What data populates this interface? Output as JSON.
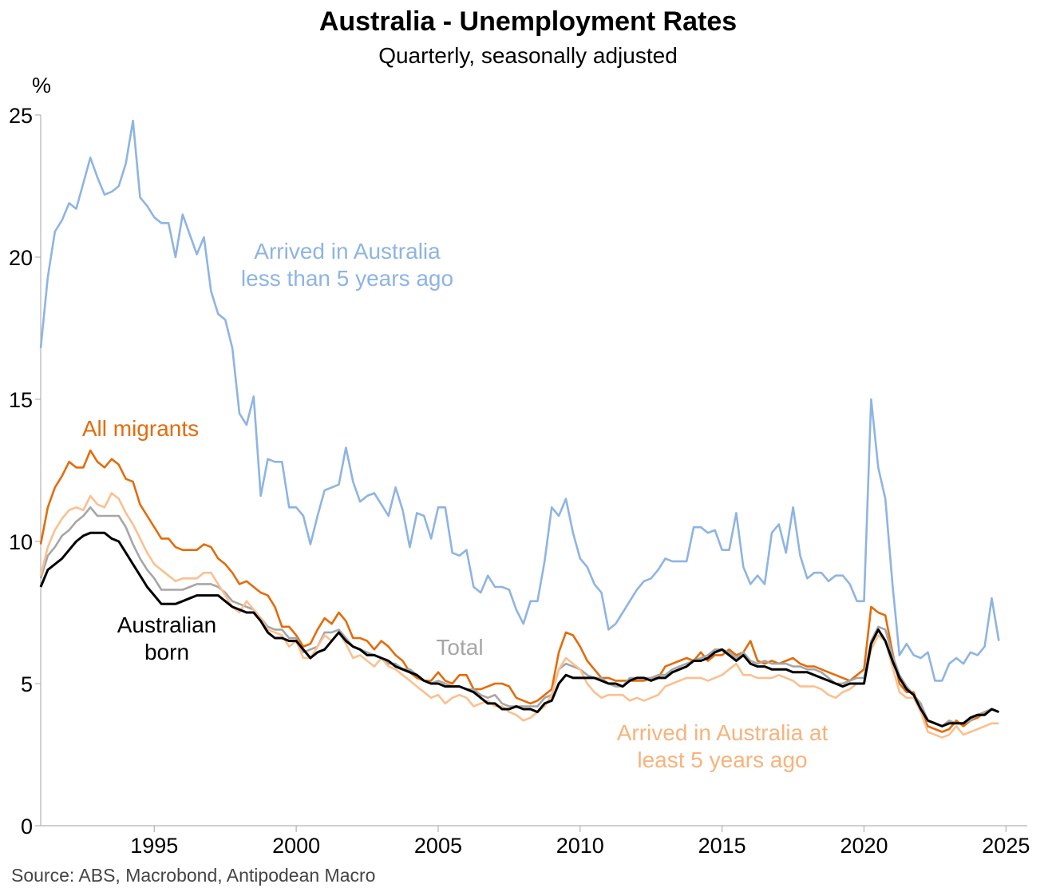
{
  "chart_data": {
    "type": "line",
    "title": "Australia - Unemployment Rates",
    "subtitle": "Quarterly, seasonally adjusted",
    "ylabel": "%",
    "source": "Source: ABS, Macrobond, Antipodean Macro",
    "xlim": [
      1991.0,
      2025.75
    ],
    "ylim": [
      0,
      25
    ],
    "x_ticks": [
      "1995",
      "2000",
      "2005",
      "2010",
      "2015",
      "2020",
      "2025"
    ],
    "y_ticks": [
      "0",
      "5",
      "10",
      "15",
      "20",
      "25"
    ],
    "x_start": 1991.0,
    "x_step": 0.25,
    "series": [
      {
        "name": "Arrived in Australia less than 5 years ago",
        "label_lines": [
          "Arrived in Australia",
          "less than 5 years ago"
        ],
        "color": "#8eb4e3",
        "values": [
          16.8,
          19.3,
          20.9,
          21.3,
          21.9,
          21.7,
          22.6,
          23.5,
          22.8,
          22.2,
          22.3,
          22.5,
          23.3,
          24.8,
          22.1,
          21.8,
          21.4,
          21.2,
          21.2,
          20.0,
          21.5,
          20.8,
          20.1,
          20.7,
          18.8,
          18.0,
          17.8,
          16.8,
          14.5,
          14.1,
          15.1,
          11.6,
          12.9,
          12.8,
          12.8,
          11.2,
          11.2,
          10.9,
          9.9,
          10.9,
          11.8,
          11.9,
          12.0,
          13.3,
          12.1,
          11.4,
          11.6,
          11.7,
          11.3,
          10.9,
          11.9,
          11.1,
          9.8,
          11.0,
          10.9,
          10.1,
          11.2,
          11.2,
          9.6,
          9.5,
          9.7,
          8.4,
          8.2,
          8.8,
          8.4,
          8.4,
          8.3,
          7.6,
          7.1,
          7.9,
          7.9,
          9.3,
          11.2,
          10.9,
          11.5,
          10.3,
          9.4,
          9.1,
          8.5,
          8.2,
          6.9,
          7.1,
          7.5,
          7.9,
          8.3,
          8.6,
          8.7,
          9.0,
          9.4,
          9.3,
          9.3,
          9.3,
          10.5,
          10.5,
          10.3,
          10.4,
          9.7,
          9.7,
          11.0,
          9.1,
          8.5,
          8.8,
          8.5,
          10.3,
          10.6,
          9.6,
          11.2,
          9.5,
          8.7,
          8.9,
          8.9,
          8.6,
          8.8,
          8.8,
          8.5,
          7.9,
          7.9,
          15.0,
          12.6,
          11.5,
          8.5,
          6.0,
          6.4,
          6.0,
          5.9,
          6.1,
          5.1,
          5.1,
          5.7,
          5.9,
          5.7,
          6.1,
          6.0,
          6.3,
          8.0,
          6.5
        ],
        "label_color": "#8eb4e3"
      },
      {
        "name": "All migrants",
        "label_lines": [
          "All migrants"
        ],
        "color": "#e36c0a",
        "values": [
          9.9,
          11.2,
          11.9,
          12.3,
          12.8,
          12.6,
          12.6,
          13.2,
          12.8,
          12.6,
          12.9,
          12.7,
          12.2,
          12.1,
          11.3,
          10.9,
          10.5,
          10.1,
          10.1,
          9.8,
          9.7,
          9.7,
          9.7,
          9.9,
          9.8,
          9.4,
          9.2,
          8.9,
          8.5,
          8.6,
          8.4,
          8.2,
          8.1,
          7.7,
          7.0,
          7.0,
          6.7,
          6.3,
          6.4,
          6.9,
          7.3,
          7.1,
          7.5,
          7.2,
          6.6,
          6.6,
          6.5,
          6.2,
          6.5,
          6.3,
          6.0,
          5.8,
          5.4,
          5.2,
          5.1,
          5.1,
          5.4,
          5.1,
          5.0,
          5.3,
          5.3,
          4.8,
          4.8,
          4.9,
          5.0,
          5.0,
          4.9,
          4.5,
          4.4,
          4.3,
          4.4,
          4.6,
          4.8,
          6.1,
          6.8,
          6.7,
          6.3,
          5.8,
          5.5,
          5.2,
          5.2,
          5.1,
          5.1,
          5.1,
          5.1,
          5.1,
          5.2,
          5.2,
          5.6,
          5.7,
          5.8,
          5.9,
          5.8,
          6.1,
          5.8,
          6.0,
          6.0,
          6.2,
          6.0,
          6.1,
          6.5,
          5.8,
          5.7,
          5.8,
          5.7,
          5.8,
          5.9,
          5.7,
          5.6,
          5.6,
          5.5,
          5.4,
          5.3,
          5.2,
          5.1,
          5.3,
          5.5,
          7.7,
          7.5,
          7.4,
          6.1,
          5.0,
          4.7,
          4.7,
          4.0,
          3.5,
          3.4,
          3.3,
          3.4,
          3.7,
          3.5,
          3.7,
          3.8,
          4.0,
          4.1,
          4.0
        ]
      },
      {
        "name": "Total",
        "label_lines": [
          "Total"
        ],
        "color": "#a6a6a6",
        "values": [
          8.7,
          9.5,
          9.8,
          10.2,
          10.4,
          10.7,
          10.9,
          11.2,
          10.9,
          10.9,
          10.9,
          10.9,
          10.5,
          9.9,
          9.4,
          9.0,
          8.7,
          8.3,
          8.3,
          8.3,
          8.3,
          8.4,
          8.5,
          8.5,
          8.5,
          8.4,
          8.2,
          7.9,
          7.8,
          7.7,
          7.6,
          7.3,
          7.0,
          6.9,
          6.9,
          6.6,
          6.6,
          6.1,
          6.2,
          6.3,
          6.8,
          6.8,
          6.9,
          6.6,
          6.3,
          6.2,
          6.1,
          6.0,
          5.9,
          5.7,
          5.7,
          5.5,
          5.5,
          5.3,
          5.1,
          5.0,
          5.1,
          5.0,
          4.9,
          4.9,
          4.8,
          4.8,
          4.6,
          4.5,
          4.6,
          4.3,
          4.2,
          4.2,
          4.2,
          4.2,
          4.2,
          4.5,
          4.6,
          5.5,
          5.7,
          5.6,
          5.5,
          5.3,
          5.2,
          5.2,
          5.0,
          4.9,
          4.9,
          5.2,
          5.2,
          5.2,
          5.2,
          5.3,
          5.3,
          5.5,
          5.6,
          5.7,
          5.8,
          5.9,
          6.0,
          6.2,
          6.2,
          6.1,
          5.9,
          6.1,
          5.8,
          5.7,
          5.8,
          5.7,
          5.7,
          5.7,
          5.6,
          5.6,
          5.5,
          5.5,
          5.4,
          5.2,
          5.0,
          5.0,
          5.1,
          5.2,
          5.2,
          6.5,
          7.0,
          6.9,
          6.0,
          5.3,
          4.9,
          4.6,
          4.3,
          3.7,
          3.6,
          3.5,
          3.7,
          3.6,
          3.6,
          3.7,
          3.9,
          4.0,
          4.1,
          4.0
        ]
      },
      {
        "name": "Arrived in Australia at least 5 years ago",
        "label_lines": [
          "Arrived in Australia at",
          "least 5 years ago"
        ],
        "color": "#fac090",
        "values": [
          8.8,
          9.8,
          10.4,
          10.8,
          11.1,
          11.2,
          11.1,
          11.6,
          11.3,
          11.2,
          11.7,
          11.5,
          11.0,
          10.6,
          10.1,
          9.6,
          9.2,
          9.0,
          8.8,
          8.6,
          8.7,
          8.7,
          8.7,
          8.9,
          8.9,
          8.5,
          8.1,
          7.7,
          7.5,
          7.9,
          7.6,
          7.3,
          6.9,
          6.8,
          6.7,
          6.3,
          6.5,
          5.9,
          5.9,
          6.3,
          6.7,
          6.5,
          6.8,
          6.4,
          5.9,
          6.0,
          5.8,
          5.6,
          5.9,
          5.6,
          5.5,
          5.3,
          5.1,
          4.9,
          4.7,
          4.5,
          4.6,
          4.3,
          4.5,
          4.6,
          4.5,
          4.2,
          4.3,
          4.4,
          4.2,
          4.2,
          4.0,
          3.9,
          3.7,
          3.8,
          4.0,
          4.2,
          4.6,
          5.5,
          5.9,
          5.7,
          5.5,
          5.0,
          4.7,
          4.5,
          4.6,
          4.6,
          4.6,
          4.4,
          4.5,
          4.4,
          4.5,
          4.6,
          4.9,
          5.0,
          5.1,
          5.2,
          5.2,
          5.2,
          5.1,
          5.2,
          5.3,
          5.5,
          5.7,
          5.3,
          5.3,
          5.2,
          5.2,
          5.2,
          5.3,
          5.2,
          5.1,
          4.9,
          4.9,
          4.9,
          4.8,
          4.6,
          4.5,
          4.7,
          4.8,
          5.0,
          5.0,
          6.2,
          6.7,
          6.5,
          5.6,
          4.7,
          4.5,
          4.5,
          4.0,
          3.3,
          3.2,
          3.1,
          3.2,
          3.5,
          3.2,
          3.3,
          3.4,
          3.5,
          3.6,
          3.6
        ],
        "label_color": "#f7b37c"
      },
      {
        "name": "Australian born",
        "label_lines": [
          "Australian",
          "born"
        ],
        "color": "#000000",
        "values": [
          8.4,
          9.0,
          9.2,
          9.4,
          9.7,
          10.0,
          10.2,
          10.3,
          10.3,
          10.3,
          10.1,
          10.0,
          9.6,
          9.2,
          8.8,
          8.4,
          8.1,
          7.8,
          7.8,
          7.8,
          7.9,
          8.0,
          8.1,
          8.1,
          8.1,
          8.1,
          7.9,
          7.7,
          7.6,
          7.5,
          7.5,
          7.2,
          6.8,
          6.6,
          6.6,
          6.5,
          6.5,
          6.2,
          5.9,
          6.1,
          6.2,
          6.5,
          6.8,
          6.5,
          6.3,
          6.2,
          6.0,
          6.0,
          5.9,
          5.8,
          5.6,
          5.5,
          5.4,
          5.3,
          5.1,
          5.0,
          5.0,
          4.9,
          4.9,
          4.9,
          4.8,
          4.7,
          4.5,
          4.3,
          4.3,
          4.1,
          4.1,
          4.2,
          4.1,
          4.1,
          4.0,
          4.3,
          4.4,
          5.0,
          5.3,
          5.2,
          5.2,
          5.2,
          5.2,
          5.1,
          5.0,
          5.0,
          4.9,
          5.1,
          5.2,
          5.2,
          5.1,
          5.2,
          5.2,
          5.4,
          5.5,
          5.6,
          5.8,
          5.8,
          5.9,
          6.1,
          6.2,
          6.0,
          5.8,
          6.0,
          5.7,
          5.6,
          5.6,
          5.5,
          5.5,
          5.5,
          5.4,
          5.4,
          5.4,
          5.3,
          5.2,
          5.1,
          5.0,
          4.9,
          5.0,
          5.0,
          5.0,
          6.4,
          6.9,
          6.5,
          5.8,
          5.2,
          4.8,
          4.6,
          4.1,
          3.7,
          3.6,
          3.5,
          3.6,
          3.6,
          3.6,
          3.8,
          3.9,
          3.9,
          4.1,
          4.0
        ]
      }
    ],
    "legend": "inline labels"
  }
}
